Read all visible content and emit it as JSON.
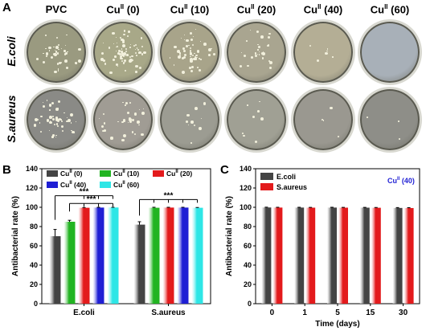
{
  "panels": {
    "a": "A",
    "b": "B",
    "c": "C"
  },
  "photo_grid": {
    "columns": [
      {
        "base": "PVC",
        "sup": "",
        "rest": ""
      },
      {
        "base": "Cu",
        "sup": "II",
        "rest": " (0)"
      },
      {
        "base": "Cu",
        "sup": "II",
        "rest": " (10)"
      },
      {
        "base": "Cu",
        "sup": "II",
        "rest": " (20)"
      },
      {
        "base": "Cu",
        "sup": "II",
        "rest": " (40)"
      },
      {
        "base": "Cu",
        "sup": "II",
        "rest": " (60)"
      }
    ],
    "rows": [
      "E.coli",
      "S.aureus"
    ]
  },
  "chart_data": [
    {
      "type": "bar",
      "panel": "B",
      "title": "",
      "xlabel": "",
      "ylabel": "Antibacterial rate (%)",
      "ylim": [
        0,
        140
      ],
      "yticks": [
        0,
        20,
        40,
        60,
        80,
        100,
        120,
        140
      ],
      "categories": [
        "E.coli",
        "S.aureus"
      ],
      "series": [
        {
          "name": "Cu(II) (0)",
          "label_base": "Cu",
          "label_sup": "II",
          "label_rest": " (0)",
          "color": "#444444",
          "values": [
            70,
            82
          ],
          "errors": [
            7,
            3
          ]
        },
        {
          "name": "Cu(II) (10)",
          "label_base": "Cu",
          "label_sup": "II",
          "label_rest": " (10)",
          "color": "#22b422",
          "values": [
            85,
            99.5
          ],
          "errors": [
            1.5,
            0.5
          ]
        },
        {
          "name": "Cu(II) (20)",
          "label_base": "Cu",
          "label_sup": "II",
          "label_rest": " (20)",
          "color": "#e31a1c",
          "values": [
            99.5,
            99.7
          ],
          "errors": [
            0.3,
            0.3
          ]
        },
        {
          "name": "Cu(II) (40)",
          "label_base": "Cu",
          "label_sup": "II",
          "label_rest": " (40)",
          "color": "#1f1fd4",
          "values": [
            99.7,
            99.7
          ],
          "errors": [
            0.3,
            0.3
          ]
        },
        {
          "name": "Cu(II) (60)",
          "label_base": "Cu",
          "label_sup": "II",
          "label_rest": " (60)",
          "color": "#2ee6e6",
          "values": [
            99.8,
            99.5
          ],
          "errors": [
            0.2,
            0.3
          ]
        }
      ],
      "significance": "***",
      "legend": "top"
    },
    {
      "type": "bar",
      "panel": "C",
      "title": "",
      "annotation_base": "Cu",
      "annotation_sup": "II",
      "annotation_rest": " (40)",
      "annotation_color": "#1f1fd4",
      "xlabel": "Time (days)",
      "ylabel": "Antibacterial rate (%)",
      "ylim": [
        0,
        140
      ],
      "yticks": [
        0,
        20,
        40,
        60,
        80,
        100,
        120,
        140
      ],
      "categories": [
        "0",
        "1",
        "5",
        "15",
        "30"
      ],
      "series": [
        {
          "name": "E.coli",
          "color": "#444444",
          "values": [
            99.8,
            99.7,
            99.7,
            99.6,
            99.3
          ],
          "errors": [
            0.3,
            0.3,
            0.3,
            0.3,
            0.4
          ]
        },
        {
          "name": "S.aureus",
          "color": "#e31a1c",
          "values": [
            99.7,
            99.6,
            99.6,
            99.5,
            99.2
          ],
          "errors": [
            0.3,
            0.3,
            0.3,
            0.3,
            0.4
          ]
        }
      ],
      "legend": "top-left"
    }
  ]
}
